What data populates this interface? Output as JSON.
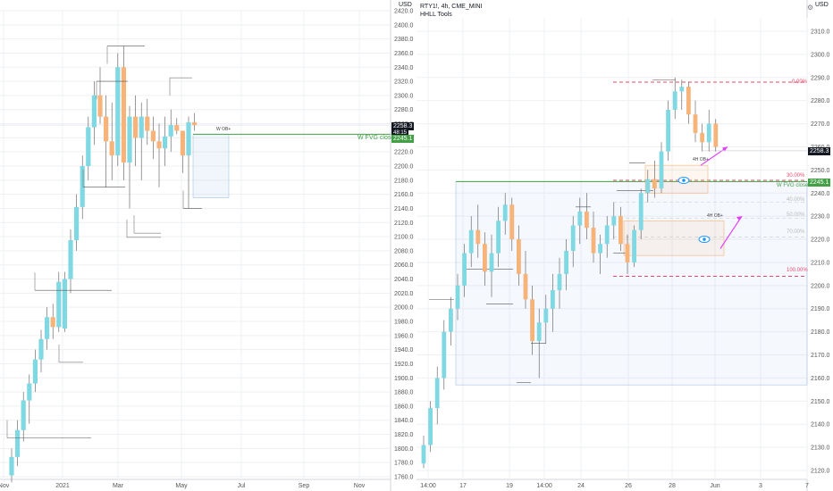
{
  "colors": {
    "up": "#7fd8e2",
    "down": "#f6b37a",
    "green": "#43a047",
    "pink": "#e84a6f",
    "grid": "#eef0f3",
    "axis_border": "#d1d4dc",
    "price_bg": "#131722",
    "magenta": "#e040fb"
  },
  "left_chart": {
    "currency": "USD",
    "price_labels": [
      "2420.0",
      "2400.0",
      "2380.0",
      "2360.0",
      "2340.0",
      "2320.0",
      "2300.0",
      "2280.0",
      "2260.0",
      "2240.0",
      "2220.0",
      "2200.0",
      "2180.0",
      "2160.0",
      "2140.0",
      "2120.0",
      "2100.0",
      "2080.0",
      "2060.0",
      "2040.0",
      "2020.0",
      "2000.0",
      "1980.0",
      "1960.0",
      "1940.0",
      "1920.0",
      "1900.0",
      "1880.0",
      "1860.0",
      "1840.0",
      "1820.0",
      "1800.0",
      "1780.0",
      "1760.0"
    ],
    "time_labels": [
      "Nov",
      "2021",
      "Mar",
      "May",
      "Jul",
      "Sep",
      "Nov"
    ],
    "last_price": "2258.3",
    "countdown": "48:15",
    "fvg_price": "2245.1",
    "fvg_label": "W FVG close",
    "ob_label": "W OB+"
  },
  "right_chart": {
    "symbol": "RTY1!, 4h, CME_MINI",
    "indicator": "HHLL Tools",
    "currency": "USD",
    "price_labels": [
      "2310.0",
      "2300.0",
      "2290.0",
      "2280.0",
      "2270.0",
      "2260.0",
      "2250.0",
      "2240.0",
      "2230.0",
      "2220.0",
      "2210.0",
      "2200.0",
      "2190.0",
      "2180.0",
      "2170.0",
      "2160.0",
      "2150.0",
      "2140.0",
      "2130.0",
      "2120.0"
    ],
    "time_labels": [
      "14:00",
      "17",
      "19",
      "14:00",
      "24",
      "26",
      "28",
      "Jun",
      "3",
      "7"
    ],
    "last_price": "2258.3",
    "fvg_price": "2245.1",
    "fvg_label": "W FVG close",
    "fib": [
      "0.00%",
      "30.00%",
      "40.00%",
      "50.00%",
      "70.00%",
      "100.00%"
    ],
    "ob_labels": [
      "4H OB+",
      "4H OB+"
    ]
  }
}
